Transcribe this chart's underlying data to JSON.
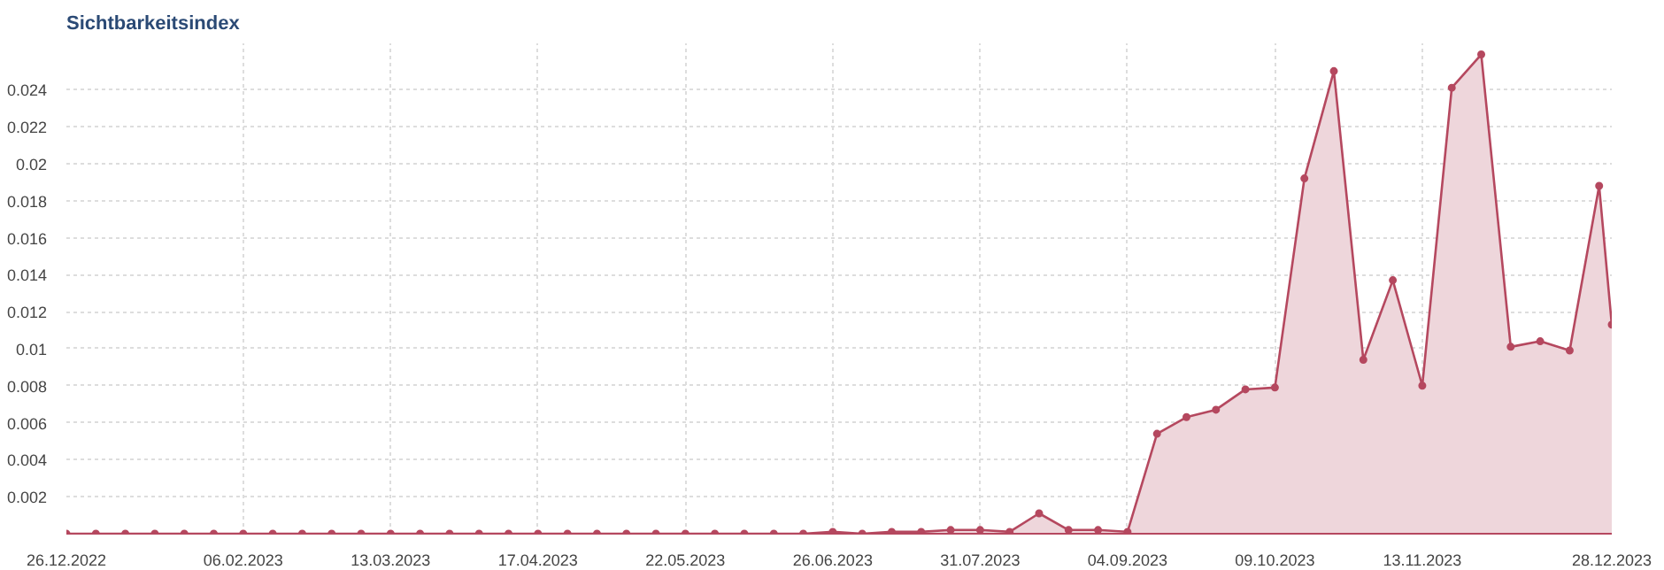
{
  "chart_data": {
    "type": "area",
    "title": "Sichtbarkeitsindex",
    "x": [
      "2022-12-26",
      "2023-01-02",
      "2023-01-09",
      "2023-01-16",
      "2023-01-23",
      "2023-01-30",
      "2023-02-06",
      "2023-02-13",
      "2023-02-20",
      "2023-02-27",
      "2023-03-06",
      "2023-03-13",
      "2023-03-20",
      "2023-03-27",
      "2023-04-03",
      "2023-04-10",
      "2023-04-17",
      "2023-04-24",
      "2023-05-01",
      "2023-05-08",
      "2023-05-15",
      "2023-05-22",
      "2023-05-29",
      "2023-06-05",
      "2023-06-12",
      "2023-06-19",
      "2023-06-26",
      "2023-07-03",
      "2023-07-10",
      "2023-07-17",
      "2023-07-24",
      "2023-07-31",
      "2023-08-07",
      "2023-08-14",
      "2023-08-21",
      "2023-08-28",
      "2023-09-04",
      "2023-09-11",
      "2023-09-18",
      "2023-09-25",
      "2023-10-02",
      "2023-10-09",
      "2023-10-16",
      "2023-10-23",
      "2023-10-30",
      "2023-11-06",
      "2023-11-13",
      "2023-11-20",
      "2023-11-27",
      "2023-12-04",
      "2023-12-11",
      "2023-12-18",
      "2023-12-25",
      "2023-12-28"
    ],
    "series": [
      {
        "color": "#b5485f",
        "values": [
          0,
          0,
          0,
          0,
          0,
          0,
          0,
          0,
          0,
          0,
          0,
          0,
          0,
          0,
          0,
          0,
          0,
          0,
          0,
          0,
          0,
          0,
          0,
          0,
          0,
          0,
          0.0001,
          0,
          0.0001,
          0.0001,
          0.0002,
          0.0002,
          0.0001,
          0.0011,
          0.0002,
          0.0002,
          0.0001,
          0.0054,
          0.0063,
          0.0067,
          0.0078,
          0.0079,
          0.0192,
          0.025,
          0.0094,
          0.0137,
          0.008,
          0.0241,
          0.0259,
          0.0101,
          0.0104,
          0.0099,
          0.0188,
          0.0113
        ]
      }
    ],
    "xlim": [
      "2022-12-26",
      "2023-12-28"
    ],
    "xticks": [
      {
        "value": "2022-12-26",
        "label": "26.12.2022"
      },
      {
        "value": "2023-02-06",
        "label": "06.02.2023"
      },
      {
        "value": "2023-03-13",
        "label": "13.03.2023"
      },
      {
        "value": "2023-04-17",
        "label": "17.04.2023"
      },
      {
        "value": "2023-05-22",
        "label": "22.05.2023"
      },
      {
        "value": "2023-06-26",
        "label": "26.06.2023"
      },
      {
        "value": "2023-07-31",
        "label": "31.07.2023"
      },
      {
        "value": "2023-09-04",
        "label": "04.09.2023"
      },
      {
        "value": "2023-10-09",
        "label": "09.10.2023"
      },
      {
        "value": "2023-11-13",
        "label": "13.11.2023"
      },
      {
        "value": "2023-12-28",
        "label": "28.12.2023"
      }
    ],
    "ylim": [
      0,
      0.0265
    ],
    "yticks": [
      0.002,
      0.004,
      0.006,
      0.008,
      0.01,
      0.012,
      0.014,
      0.016,
      0.018,
      0.02,
      0.022,
      0.024
    ],
    "grid": true,
    "marker": "circle",
    "line_style": "solid"
  }
}
